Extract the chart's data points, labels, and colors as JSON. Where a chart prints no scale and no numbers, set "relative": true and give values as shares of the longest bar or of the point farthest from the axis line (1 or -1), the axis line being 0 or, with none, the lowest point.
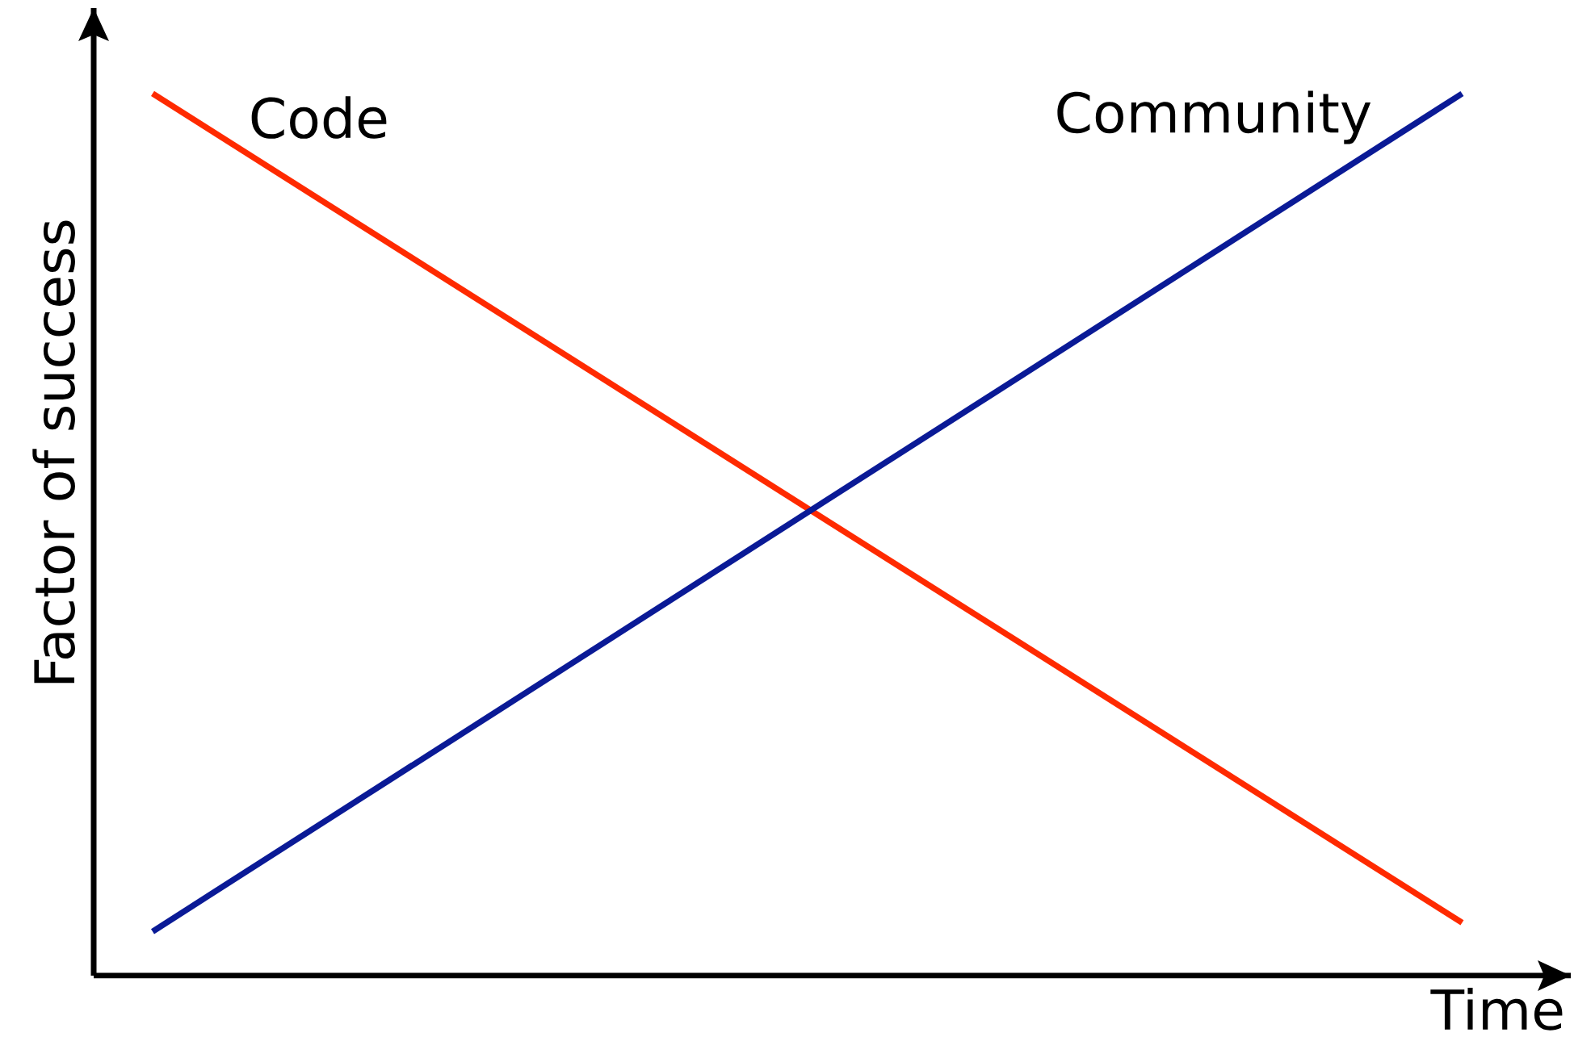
{
  "chart_data": {
    "type": "line",
    "relative": true,
    "xlabel": "Time",
    "ylabel": "Factor of success",
    "categories": [
      null,
      null
    ],
    "series": [
      {
        "name": "Code",
        "color": "#ff2a00",
        "values": [
          1,
          0.06
        ]
      },
      {
        "name": "Community",
        "color": "#0a1a96",
        "values": [
          0.05,
          1
        ]
      }
    ]
  }
}
